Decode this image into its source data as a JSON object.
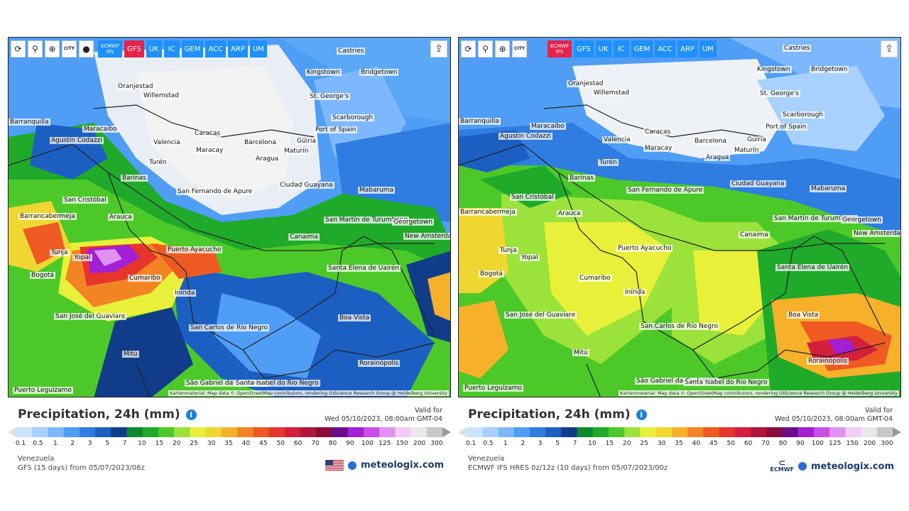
{
  "toolbar": {
    "tools": [
      "refresh-icon",
      "location-pin-icon",
      "zoom-icon",
      "city-toggle-icon",
      "dot-icon"
    ],
    "city_label": "CITY",
    "left_models": [
      {
        "label": "ECMWF\nIFS",
        "active": false,
        "two": true
      },
      {
        "label": "GFS",
        "active": true
      },
      {
        "label": "UK",
        "active": false
      },
      {
        "label": "IC",
        "active": false
      },
      {
        "label": "GEM",
        "active": false
      },
      {
        "label": "ACC",
        "active": false
      },
      {
        "label": "ARP",
        "active": false
      },
      {
        "label": "UM",
        "active": false
      }
    ],
    "right_models": [
      {
        "label": "ECMWF\nIFS",
        "active": true,
        "two": true
      },
      {
        "label": "GFS",
        "active": false
      },
      {
        "label": "UK",
        "active": false
      },
      {
        "label": "IC",
        "active": false
      },
      {
        "label": "GEM",
        "active": false
      },
      {
        "label": "ACC",
        "active": false
      },
      {
        "label": "ARP",
        "active": false
      },
      {
        "label": "UM",
        "active": false
      }
    ]
  },
  "cities": [
    "Castries",
    "Kingstown",
    "Bridgetown",
    "St. George's",
    "Oranjestad",
    "Willemstad",
    "Scarborough",
    "Port of Spain",
    "Maracaibo",
    "Agustín Codazzi",
    "Caracas",
    "Valencia",
    "Maracay",
    "Barcelona",
    "Güiria",
    "Maturín",
    "Aragua",
    "Turén",
    "Barinas",
    "San Fernando de Apure",
    "Ciudad Guayana",
    "Mabaruma",
    "San Cristóbal",
    "Barrancabermeja",
    "Arauca",
    "Tunja",
    "Yopal",
    "San Martín de Turumbang",
    "Georgetown",
    "New Amsterdam",
    "Canaima",
    "Puerto Ayacucho",
    "Cumaribo",
    "Santa Elena de Uairén",
    "Bogotá",
    "Inírida",
    "San José del Guaviare",
    "Boa Vista",
    "San Carlos de Río Negro",
    "Mitú",
    "Rorainópolis",
    "São Gabriel da Cachoeira",
    "Santa Isabel do Rio Negro",
    "Puerto Leguízamo",
    "Barranquilla"
  ],
  "attribution": "Kartenmaterial: Map data © OpenStreetMap contributors, rendering GIScience Research Group @ Heidelberg University",
  "panels": {
    "left": {
      "title": "Precipitation, 24h (mm)",
      "valid_for": "Valid for",
      "valid_date": "Wed 05/10/2023, 08:00am GMT-04",
      "region": "Venezuela",
      "model_line": "GFS (15 days) from 05/07/2023/06z",
      "brand": "meteologix.com"
    },
    "right": {
      "title": "Precipitation, 24h (mm)",
      "valid_for": "Valid for",
      "valid_date": "Wed 05/10/2023, 08:00am GMT-04",
      "region": "Venezuela",
      "model_line": "ECMWF IFS HRES 0z/12z (10 days) from 05/07/2023/00z",
      "brand": "meteologix.com",
      "ecmwf_logo": "ECMWF"
    }
  },
  "legend": {
    "ticks": [
      "0.1",
      "0.5",
      "1",
      "2",
      "3",
      "5",
      "7",
      "10",
      "15",
      "20",
      "25",
      "30",
      "35",
      "40",
      "45",
      "50",
      "60",
      "70",
      "80",
      "90",
      "100",
      "125",
      "150",
      "200",
      "300"
    ],
    "colors": [
      "#cde4ff",
      "#a9d1ff",
      "#7db8ff",
      "#4f9df5",
      "#2f7de0",
      "#1c5fc2",
      "#103c8a",
      "#0e8a2e",
      "#1faa2a",
      "#4cc928",
      "#9be23a",
      "#e8f03a",
      "#f0d630",
      "#f7b02a",
      "#f28424",
      "#ee5a22",
      "#e8352c",
      "#d41f3c",
      "#b0163a",
      "#8a0c3a",
      "#6a0f8a",
      "#a21fd4",
      "#c94ee8",
      "#e092f2",
      "#f3ccf7",
      "#e9e9e9",
      "#c8c8c8"
    ]
  }
}
